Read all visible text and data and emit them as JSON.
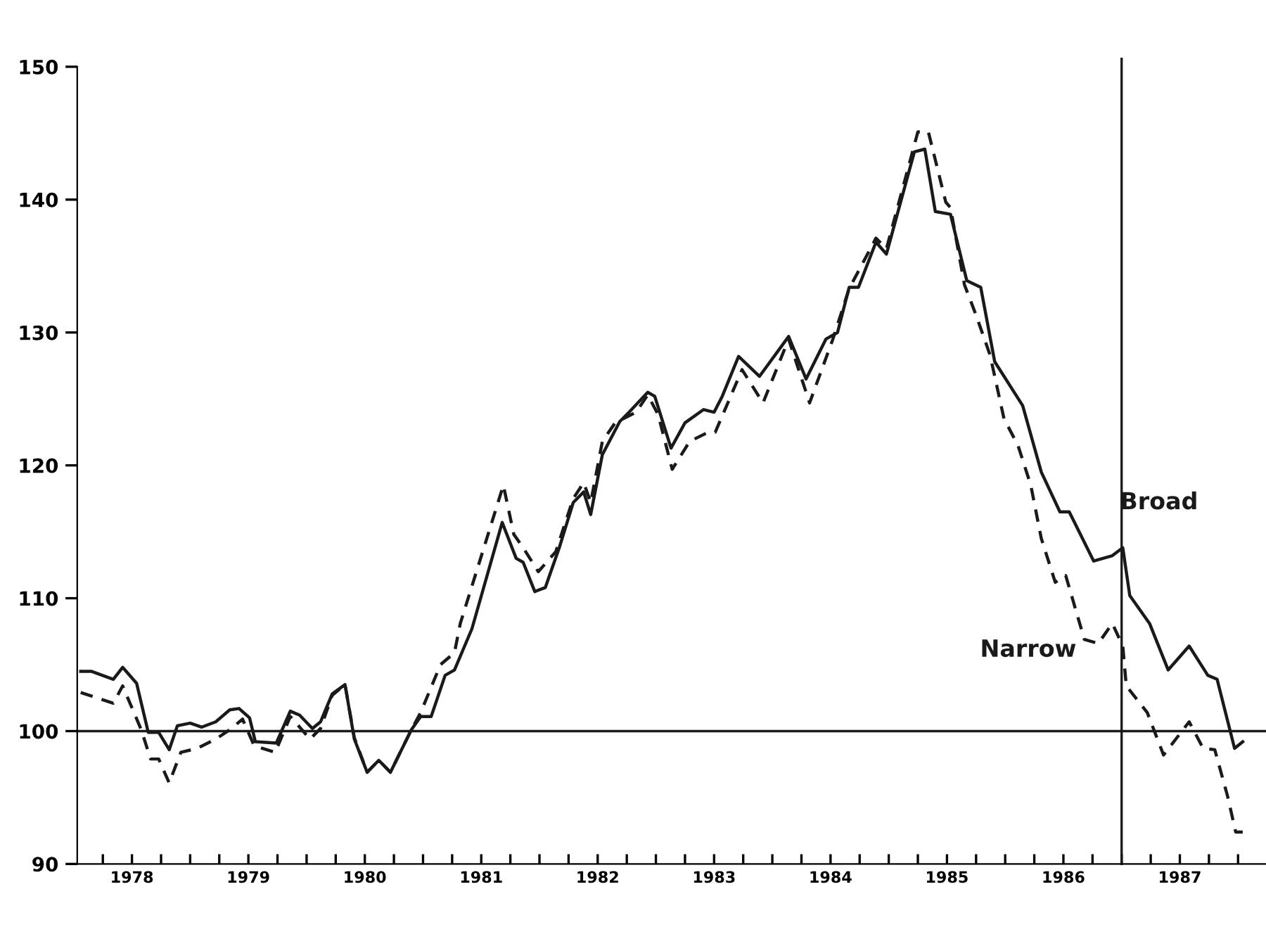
{
  "chart_data": {
    "type": "line",
    "xlim": [
      1978.03,
      1988.24
    ],
    "ylim": [
      90,
      150
    ],
    "yticks": [
      90,
      100,
      110,
      120,
      130,
      140,
      150
    ],
    "xticks": [
      {
        "value": 1978.25,
        "label": null
      },
      {
        "value": 1978.5,
        "label": "1978"
      },
      {
        "value": 1978.75,
        "label": null
      },
      {
        "value": 1979,
        "label": null
      },
      {
        "value": 1979.25,
        "label": null
      },
      {
        "value": 1979.5,
        "label": "1979"
      },
      {
        "value": 1979.75,
        "label": null
      },
      {
        "value": 1980,
        "label": null
      },
      {
        "value": 1980.25,
        "label": null
      },
      {
        "value": 1980.5,
        "label": "1980"
      },
      {
        "value": 1980.75,
        "label": null
      },
      {
        "value": 1981,
        "label": null
      },
      {
        "value": 1981.25,
        "label": null
      },
      {
        "value": 1981.5,
        "label": "1981"
      },
      {
        "value": 1981.75,
        "label": null
      },
      {
        "value": 1982,
        "label": null
      },
      {
        "value": 1982.25,
        "label": null
      },
      {
        "value": 1982.5,
        "label": "1982"
      },
      {
        "value": 1982.75,
        "label": null
      },
      {
        "value": 1983,
        "label": null
      },
      {
        "value": 1983.25,
        "label": null
      },
      {
        "value": 1983.5,
        "label": "1983"
      },
      {
        "value": 1983.75,
        "label": null
      },
      {
        "value": 1984,
        "label": null
      },
      {
        "value": 1984.25,
        "label": null
      },
      {
        "value": 1984.5,
        "label": "1984"
      },
      {
        "value": 1984.75,
        "label": null
      },
      {
        "value": 1985,
        "label": null
      },
      {
        "value": 1985.25,
        "label": null
      },
      {
        "value": 1985.5,
        "label": "1985"
      },
      {
        "value": 1985.75,
        "label": null
      },
      {
        "value": 1986,
        "label": null
      },
      {
        "value": 1986.25,
        "label": null
      },
      {
        "value": 1986.5,
        "label": "1986"
      },
      {
        "value": 1986.75,
        "label": null
      },
      {
        "value": 1987,
        "label": null
      },
      {
        "value": 1987.25,
        "label": null
      },
      {
        "value": 1987.5,
        "label": "1987"
      },
      {
        "value": 1987.75,
        "label": null
      },
      {
        "value": 1988,
        "label": null
      }
    ],
    "grid": false,
    "legend": false,
    "marker": "none",
    "series": [
      {
        "name": "Broad",
        "color": "#1a1a1a",
        "line_style": "solid",
        "x": [
          1978.06,
          1978.15,
          1978.34,
          1978.42,
          1978.54,
          1978.64,
          1978.73,
          1978.82,
          1978.89,
          1979.0,
          1979.1,
          1979.22,
          1979.34,
          1979.42,
          1979.51,
          1979.56,
          1979.74,
          1979.86,
          1979.94,
          1980.05,
          1980.12,
          1980.22,
          1980.33,
          1980.41,
          1980.52,
          1980.62,
          1980.72,
          1980.9,
          1980.98,
          1981.07,
          1981.19,
          1981.27,
          1981.42,
          1981.68,
          1981.8,
          1981.86,
          1981.96,
          1982.05,
          1982.17,
          1982.29,
          1982.38,
          1982.44,
          1982.54,
          1982.69,
          1982.77,
          1982.93,
          1982.99,
          1983.13,
          1983.25,
          1983.41,
          1983.5,
          1983.57,
          1983.71,
          1983.89,
          1984.14,
          1984.29,
          1984.46,
          1984.56,
          1984.66,
          1984.74,
          1984.89,
          1984.98,
          1985.22,
          1985.31,
          1985.4,
          1985.53,
          1985.67,
          1985.79,
          1985.91,
          1986.15,
          1986.31,
          1986.47,
          1986.55,
          1986.76,
          1986.92,
          1987.01,
          1987.07,
          1987.24,
          1987.4,
          1987.58,
          1987.74,
          1987.82,
          1987.97,
          1988.04
        ],
        "values": [
          104.5,
          104.5,
          103.9,
          104.8,
          103.6,
          99.9,
          99.9,
          98.6,
          100.4,
          100.6,
          100.3,
          100.7,
          101.6,
          101.7,
          101.0,
          99.2,
          99.1,
          101.5,
          101.2,
          100.2,
          100.7,
          102.8,
          103.5,
          99.4,
          96.9,
          97.8,
          96.9,
          100.1,
          101.1,
          101.1,
          104.2,
          104.6,
          107.7,
          115.7,
          113.0,
          112.7,
          110.5,
          110.8,
          113.8,
          117.2,
          118.0,
          116.3,
          120.8,
          123.3,
          124.0,
          125.5,
          125.2,
          121.3,
          123.2,
          124.2,
          124.0,
          125.2,
          128.2,
          126.7,
          129.7,
          126.5,
          129.5,
          130.0,
          133.4,
          133.4,
          136.8,
          135.9,
          143.6,
          143.8,
          139.1,
          138.9,
          133.9,
          133.4,
          127.8,
          124.5,
          119.5,
          116.5,
          116.5,
          112.8,
          113.2,
          113.8,
          110.2,
          108.1,
          104.6,
          106.4,
          104.2,
          103.9,
          98.7,
          99.2
        ]
      },
      {
        "name": "Narrow",
        "color": "#1a1a1a",
        "line_style": "dashed",
        "x": [
          1978.06,
          1978.34,
          1978.42,
          1978.58,
          1978.66,
          1978.73,
          1978.82,
          1978.92,
          1979.06,
          1979.22,
          1979.34,
          1979.45,
          1979.55,
          1979.73,
          1979.86,
          1980.03,
          1980.12,
          1980.22,
          1980.33,
          1980.41,
          1980.52,
          1980.62,
          1980.72,
          1980.9,
          1980.98,
          1981.15,
          1981.27,
          1981.32,
          1981.69,
          1981.78,
          1981.86,
          1981.99,
          1982.14,
          1982.29,
          1982.38,
          1982.44,
          1982.54,
          1982.65,
          1982.83,
          1982.93,
          1983.02,
          1983.14,
          1983.29,
          1983.45,
          1983.51,
          1983.74,
          1983.92,
          1984.14,
          1984.32,
          1984.52,
          1984.66,
          1984.89,
          1984.98,
          1985.25,
          1985.34,
          1985.49,
          1985.53,
          1985.65,
          1985.75,
          1985.87,
          1985.99,
          1986.11,
          1986.22,
          1986.31,
          1986.43,
          1986.52,
          1986.68,
          1986.8,
          1986.92,
          1987.01,
          1987.04,
          1987.22,
          1987.36,
          1987.58,
          1987.7,
          1987.8,
          1987.91,
          1987.98,
          1988.04
        ],
        "values": [
          102.9,
          102.1,
          103.4,
          100.1,
          97.9,
          97.9,
          96.1,
          98.4,
          98.7,
          99.4,
          100.1,
          100.9,
          98.9,
          98.4,
          101.1,
          99.4,
          100.2,
          102.7,
          103.5,
          99.5,
          96.9,
          97.8,
          96.9,
          100.1,
          101.4,
          105.0,
          105.9,
          108.1,
          118.5,
          114.8,
          113.8,
          112.0,
          113.5,
          117.5,
          118.7,
          117.2,
          121.8,
          123.2,
          124.0,
          125.3,
          123.8,
          119.7,
          121.8,
          122.5,
          122.5,
          127.2,
          124.7,
          129.5,
          124.7,
          129.5,
          133.3,
          137.1,
          136.3,
          145.1,
          145.1,
          139.8,
          139.4,
          133.6,
          131.3,
          128.3,
          123.5,
          121.5,
          118.5,
          114.5,
          111.2,
          111.7,
          106.9,
          106.6,
          108.1,
          106.4,
          103.4,
          101.4,
          98.2,
          100.7,
          98.7,
          98.6,
          95.1,
          92.4,
          92.4
        ]
      }
    ],
    "ref_lines": [
      {
        "axis": "y",
        "value": 100,
        "color": "#1a1a1a",
        "line_style": "solid"
      },
      {
        "axis": "x",
        "value": 1987.0,
        "color": "#1a1a1a",
        "line_style": "solid"
      }
    ]
  }
}
